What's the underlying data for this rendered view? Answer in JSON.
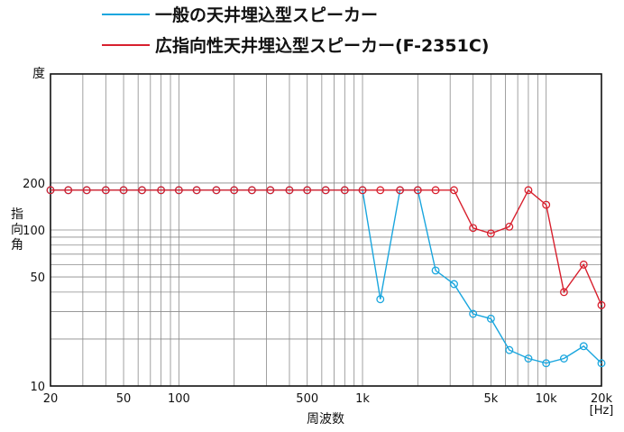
{
  "chart_data": {
    "type": "line",
    "title": "",
    "xlabel": "周波数",
    "xunit": "[Hz]",
    "ylabel": "指向角",
    "yunit": "度",
    "xscale": "log",
    "yscale": "log",
    "xlim": [
      20,
      20000
    ],
    "ylim": [
      10,
      1000
    ],
    "x_tick_labels": [
      {
        "value": 20,
        "label": "20"
      },
      {
        "value": 50,
        "label": "50"
      },
      {
        "value": 100,
        "label": "100"
      },
      {
        "value": 500,
        "label": "500"
      },
      {
        "value": 1000,
        "label": "1k"
      },
      {
        "value": 5000,
        "label": "5k"
      },
      {
        "value": 10000,
        "label": "10k"
      },
      {
        "value": 20000,
        "label": "20k"
      }
    ],
    "y_tick_labels": [
      {
        "value": 10,
        "label": "10"
      },
      {
        "value": 50,
        "label": "50"
      },
      {
        "value": 100,
        "label": "100"
      },
      {
        "value": 200,
        "label": "200"
      }
    ],
    "grid": true,
    "legend_position": "top",
    "x": [
      20,
      25,
      31.5,
      40,
      50,
      63,
      80,
      100,
      125,
      160,
      200,
      250,
      315,
      400,
      500,
      630,
      800,
      1000,
      1250,
      1600,
      2000,
      2500,
      3150,
      4000,
      5000,
      6300,
      8000,
      10000,
      12500,
      16000,
      20000
    ],
    "series": [
      {
        "name": "一般の天井埋込型スピーカー",
        "color": "#1aa6de",
        "values": [
          180,
          180,
          180,
          180,
          180,
          180,
          180,
          180,
          180,
          180,
          180,
          180,
          180,
          180,
          180,
          180,
          180,
          180,
          36,
          180,
          180,
          55,
          45,
          29,
          27,
          17,
          15,
          14,
          15,
          18,
          14
        ]
      },
      {
        "name": "広指向性天井埋込型スピーカー(F-2351C)",
        "color": "#d8202e",
        "values": [
          180,
          180,
          180,
          180,
          180,
          180,
          180,
          180,
          180,
          180,
          180,
          180,
          180,
          180,
          180,
          180,
          180,
          180,
          180,
          180,
          180,
          180,
          180,
          103,
          95,
          105,
          180,
          145,
          40,
          60,
          33
        ]
      }
    ]
  }
}
